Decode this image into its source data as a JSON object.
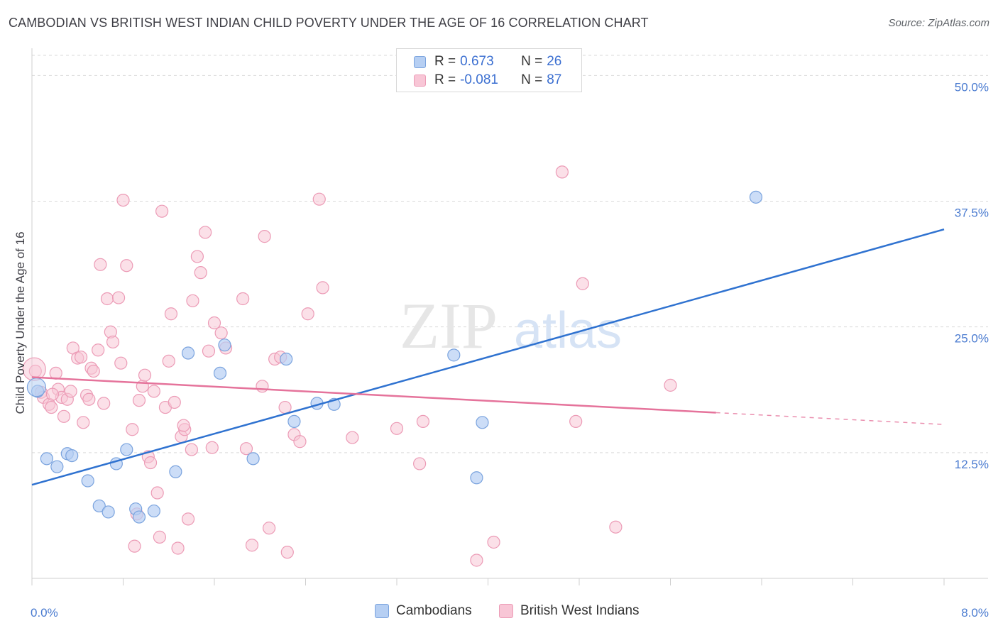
{
  "title": "CAMBODIAN VS BRITISH WEST INDIAN CHILD POVERTY UNDER THE AGE OF 16 CORRELATION CHART",
  "source": "Source: ZipAtlas.com",
  "watermark": {
    "zip": "ZIP",
    "atlas": "atlas"
  },
  "legend": {
    "r_label": "R =",
    "n_label": "N =",
    "rows": [
      {
        "r": "0.673",
        "n": "26"
      },
      {
        "r": "-0.081",
        "n": "87"
      }
    ]
  },
  "bottom_legend": [
    "Cambodians",
    "British West Indians"
  ],
  "colors": {
    "blue_fill": "#b6cff3",
    "blue_stroke": "#7aa3de",
    "blue_line": "#2f72d0",
    "pink_fill": "#f8c6d6",
    "pink_stroke": "#ec9bb6",
    "pink_line": "#e5739b",
    "grid": "#d9d9d9",
    "tick_text": "#4a7bd0"
  },
  "chart_data": {
    "type": "scatter",
    "xlabel": "",
    "ylabel": "Child Poverty Under the Age of 16",
    "xlim": [
      0,
      8
    ],
    "ylim": [
      0,
      52
    ],
    "x_tick_labels": [
      "0.0%",
      "8.0%"
    ],
    "y_ticks": [
      12.5,
      25.0,
      37.5,
      50.0
    ],
    "y_tick_labels": [
      "12.5%",
      "25.0%",
      "37.5%",
      "50.0%"
    ],
    "grid": true,
    "legend_position": "top-center",
    "series": [
      {
        "name": "Cambodians",
        "color": "blue",
        "trend": {
          "x": [
            0,
            8
          ],
          "y": [
            9.3,
            34.7
          ],
          "dashed_from": null
        },
        "points": [
          [
            0.05,
            18.6
          ],
          [
            0.13,
            11.9
          ],
          [
            0.22,
            11.1
          ],
          [
            0.31,
            12.4
          ],
          [
            0.35,
            12.2
          ],
          [
            0.49,
            9.7
          ],
          [
            0.59,
            7.2
          ],
          [
            0.67,
            6.6
          ],
          [
            0.74,
            11.4
          ],
          [
            0.83,
            12.8
          ],
          [
            0.91,
            6.9
          ],
          [
            0.94,
            6.1
          ],
          [
            1.07,
            6.7
          ],
          [
            1.26,
            10.6
          ],
          [
            1.37,
            22.4
          ],
          [
            1.69,
            23.2
          ],
          [
            1.65,
            20.4
          ],
          [
            1.94,
            11.9
          ],
          [
            2.23,
            21.8
          ],
          [
            2.3,
            15.6
          ],
          [
            2.5,
            17.4
          ],
          [
            2.65,
            17.3
          ],
          [
            3.7,
            22.2
          ],
          [
            3.9,
            10.0
          ],
          [
            3.95,
            15.5
          ],
          [
            6.35,
            37.9
          ]
        ]
      },
      {
        "name": "British West Indians",
        "color": "pink",
        "trend": {
          "x": [
            0,
            8
          ],
          "y": [
            20.0,
            15.3
          ],
          "dashed_from": 6.0
        },
        "points": [
          [
            0.03,
            20.6
          ],
          [
            0.08,
            18.5
          ],
          [
            0.1,
            18.0
          ],
          [
            0.15,
            17.3
          ],
          [
            0.17,
            17.0
          ],
          [
            0.21,
            20.4
          ],
          [
            0.23,
            18.8
          ],
          [
            0.26,
            18.0
          ],
          [
            0.28,
            16.1
          ],
          [
            0.31,
            17.8
          ],
          [
            0.34,
            18.6
          ],
          [
            0.36,
            22.9
          ],
          [
            0.4,
            21.9
          ],
          [
            0.43,
            22.0
          ],
          [
            0.45,
            15.5
          ],
          [
            0.48,
            18.2
          ],
          [
            0.5,
            17.8
          ],
          [
            0.52,
            20.9
          ],
          [
            0.54,
            20.6
          ],
          [
            0.58,
            22.7
          ],
          [
            0.6,
            31.2
          ],
          [
            0.63,
            17.4
          ],
          [
            0.66,
            27.8
          ],
          [
            0.69,
            24.5
          ],
          [
            0.71,
            23.5
          ],
          [
            0.76,
            27.9
          ],
          [
            0.78,
            21.4
          ],
          [
            0.8,
            37.6
          ],
          [
            0.83,
            31.1
          ],
          [
            0.88,
            14.8
          ],
          [
            0.9,
            3.2
          ],
          [
            0.92,
            6.4
          ],
          [
            0.94,
            17.7
          ],
          [
            0.97,
            19.1
          ],
          [
            0.99,
            20.2
          ],
          [
            1.02,
            12.1
          ],
          [
            1.04,
            11.5
          ],
          [
            1.07,
            18.6
          ],
          [
            1.1,
            8.5
          ],
          [
            1.12,
            4.1
          ],
          [
            1.14,
            36.5
          ],
          [
            1.17,
            17.0
          ],
          [
            1.2,
            21.6
          ],
          [
            1.22,
            26.3
          ],
          [
            1.25,
            17.5
          ],
          [
            1.28,
            3.0
          ],
          [
            1.31,
            14.1
          ],
          [
            1.34,
            14.8
          ],
          [
            1.37,
            5.9
          ],
          [
            1.4,
            12.8
          ],
          [
            1.41,
            27.6
          ],
          [
            1.45,
            32.0
          ],
          [
            1.48,
            30.4
          ],
          [
            1.52,
            34.4
          ],
          [
            1.55,
            22.6
          ],
          [
            1.58,
            13.0
          ],
          [
            1.6,
            25.4
          ],
          [
            1.66,
            24.4
          ],
          [
            1.7,
            22.9
          ],
          [
            1.85,
            27.8
          ],
          [
            1.88,
            12.9
          ],
          [
            1.93,
            3.3
          ],
          [
            2.02,
            19.1
          ],
          [
            2.04,
            34.0
          ],
          [
            2.08,
            5.0
          ],
          [
            2.13,
            21.8
          ],
          [
            2.18,
            22.0
          ],
          [
            2.22,
            17.0
          ],
          [
            2.24,
            2.6
          ],
          [
            2.3,
            14.3
          ],
          [
            2.35,
            13.6
          ],
          [
            2.42,
            26.3
          ],
          [
            2.52,
            37.7
          ],
          [
            2.55,
            28.9
          ],
          [
            2.81,
            14.0
          ],
          [
            3.2,
            14.9
          ],
          [
            3.4,
            11.4
          ],
          [
            3.43,
            15.6
          ],
          [
            3.9,
            1.8
          ],
          [
            4.05,
            3.6
          ],
          [
            4.65,
            40.4
          ],
          [
            4.77,
            15.6
          ],
          [
            4.83,
            29.3
          ],
          [
            5.12,
            5.1
          ],
          [
            5.6,
            19.2
          ],
          [
            1.33,
            15.2
          ],
          [
            0.18,
            18.3
          ]
        ]
      }
    ]
  }
}
